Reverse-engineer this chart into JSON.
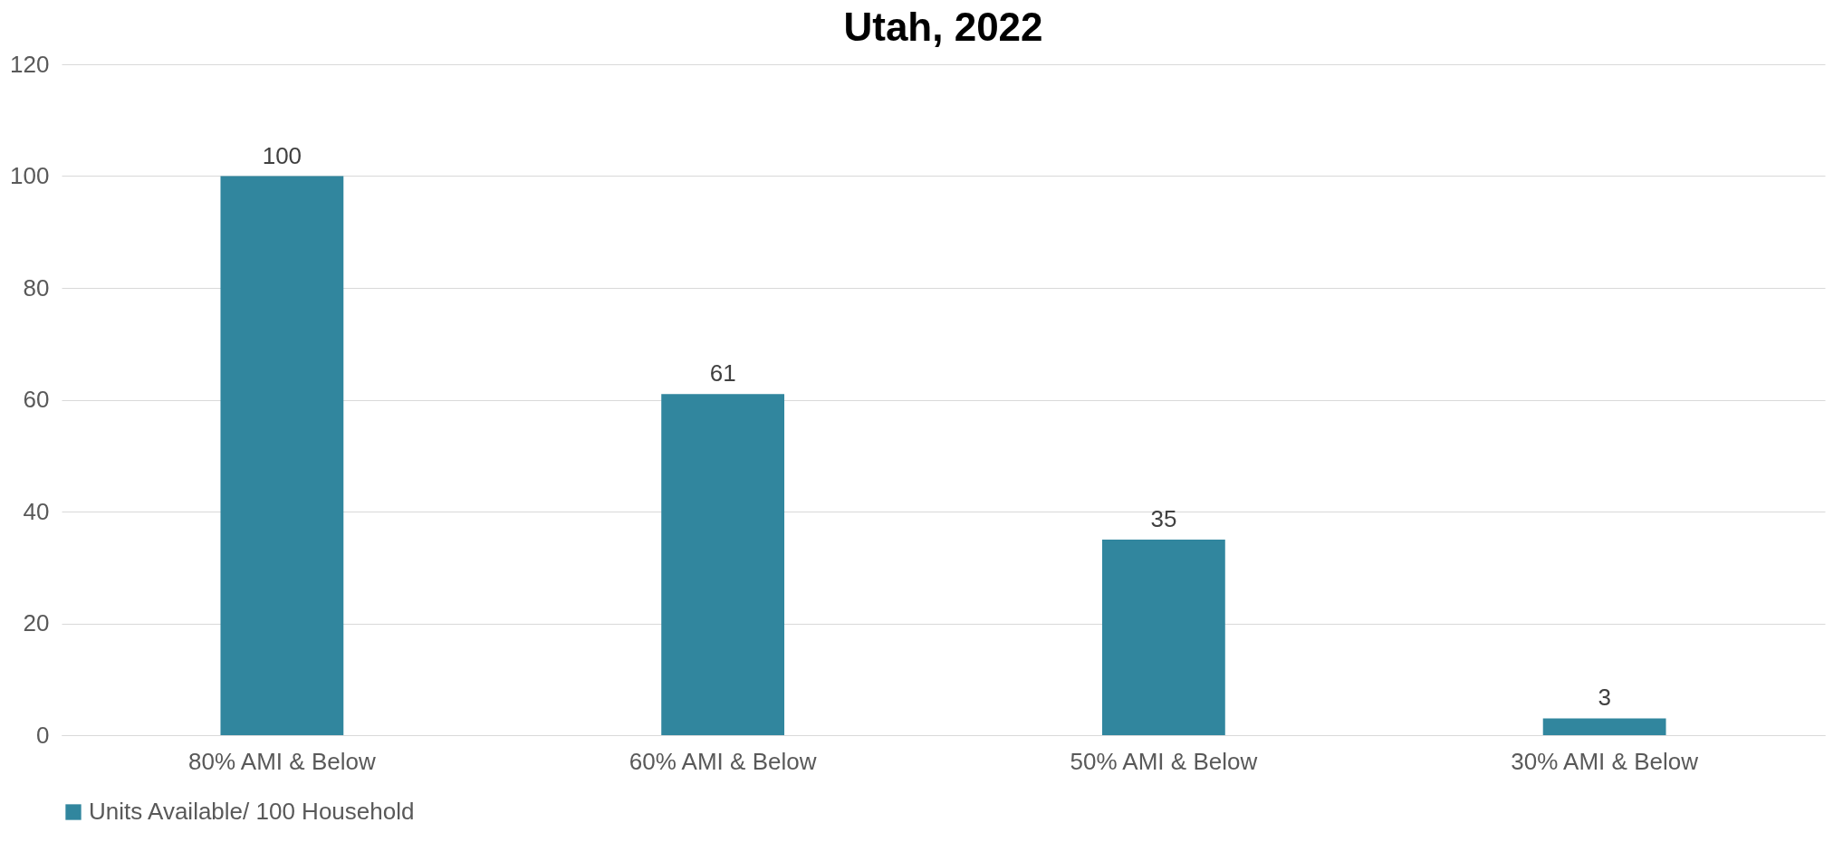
{
  "chart_data": {
    "type": "bar",
    "title": "Utah, 2022",
    "categories": [
      "80% AMI & Below",
      "60% AMI & Below",
      "50% AMI & Below",
      "30% AMI & Below"
    ],
    "series": [
      {
        "name": "Units Available/ 100 Household",
        "color": "#31869e",
        "values": [
          100,
          61,
          35,
          3
        ]
      }
    ],
    "ylim": [
      0,
      120
    ],
    "yticks": [
      0,
      20,
      40,
      60,
      80,
      100,
      120
    ],
    "grid": "y",
    "data_labels": true,
    "legend": "bottom"
  }
}
